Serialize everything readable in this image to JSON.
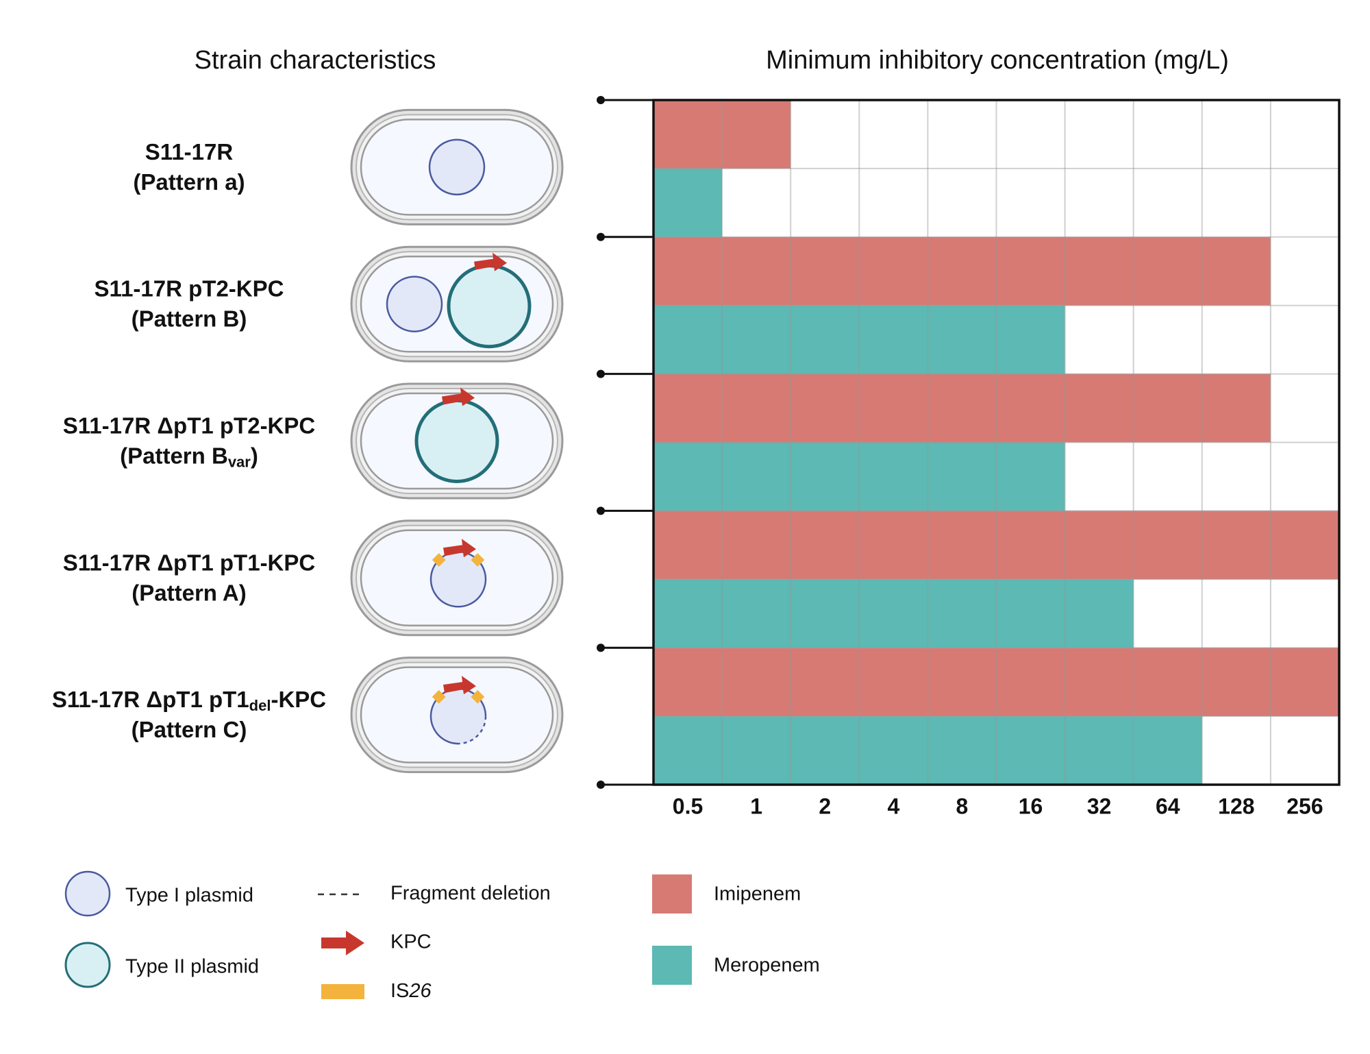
{
  "left_title": "Strain characteristics",
  "chart_data": {
    "type": "bar",
    "title": "Minimum inhibitory concentration (mg/L)",
    "categories": [
      [
        [
          "S11-17R"
        ],
        [
          "(Pattern a)"
        ]
      ],
      [
        [
          "S11-17R pT2-KPC"
        ],
        [
          "(Pattern B)"
        ]
      ],
      [
        [
          "S11-17R ΔpT1 pT2-KPC"
        ],
        [
          "(Pattern B",
          "var",
          ")"
        ]
      ],
      [
        [
          "S11-17R ΔpT1 pT1-KPC"
        ],
        [
          "(Pattern A)"
        ]
      ],
      [
        [
          "S11-17R ΔpT1 pT1",
          "del",
          "-KPC"
        ],
        [
          "(Pattern C)"
        ]
      ]
    ],
    "series": [
      {
        "name": "Imipenem",
        "color": "#d77a74",
        "values": [
          1,
          128,
          128,
          256,
          256
        ]
      },
      {
        "name": "Meropenem",
        "color": "#5cb9b4",
        "values": [
          0.5,
          16,
          16,
          32,
          64
        ]
      }
    ],
    "xlim": [
      0.25,
      256
    ],
    "xticks": [
      0.5,
      1,
      2,
      4,
      8,
      16,
      32,
      64,
      128,
      256
    ],
    "xscale": "log2",
    "grid": true
  },
  "legend": {
    "plasmids": [
      "Type I plasmid",
      "Type II plasmid"
    ],
    "symbols": [
      "Fragment deletion",
      "KPC",
      [
        "IS",
        "26"
      ]
    ]
  }
}
